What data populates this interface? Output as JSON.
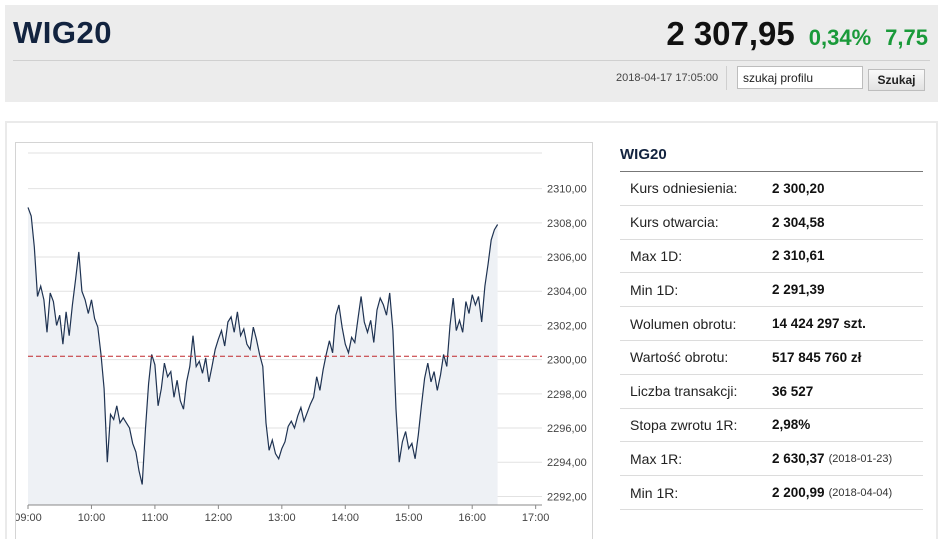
{
  "header": {
    "title": "WIG20",
    "price": "2 307,95",
    "change_pct": "0,34%",
    "change_abs": "7,75",
    "timestamp": "2018-04-17 17:05:00",
    "search": {
      "value": "szukaj profilu",
      "button_label": "Szukaj"
    },
    "colors": {
      "positive": "#1a9a3a",
      "title": "#12233f"
    }
  },
  "stats": {
    "title": "WIG20",
    "rows": [
      {
        "label": "Kurs odniesienia:",
        "value": "2 300,20",
        "date": ""
      },
      {
        "label": "Kurs otwarcia:",
        "value": "2 304,58",
        "date": ""
      },
      {
        "label": "Max 1D:",
        "value": "2 310,61",
        "date": ""
      },
      {
        "label": "Min 1D:",
        "value": "2 291,39",
        "date": ""
      },
      {
        "label": "Wolumen obrotu:",
        "value": "14 424 297 szt.",
        "date": ""
      },
      {
        "label": "Wartość obrotu:",
        "value": "517 845 760 zł",
        "date": ""
      },
      {
        "label": "Liczba transakcji:",
        "value": "36 527",
        "date": ""
      },
      {
        "label": "Stopa zwrotu 1R:",
        "value": "2,98%",
        "date": ""
      },
      {
        "label": "Max 1R:",
        "value": "2 630,37",
        "date": "(2018-01-23)"
      },
      {
        "label": "Min 1R:",
        "value": "2 200,99",
        "date": "(2018-04-04)"
      }
    ]
  },
  "chart_data": {
    "type": "area",
    "x_ticks": [
      "09:00",
      "10:00",
      "11:00",
      "12:00",
      "13:00",
      "14:00",
      "15:00",
      "16:00",
      "17:00"
    ],
    "y_ticks": [
      "2310,00",
      "2308,00",
      "2306,00",
      "2304,00",
      "2302,00",
      "2300,00",
      "2298,00",
      "2296,00",
      "2294,00",
      "2292,00"
    ],
    "xlim": [
      9.0,
      17.1
    ],
    "ylim": [
      2291.5,
      2312.2
    ],
    "reference_line": 2300.2,
    "colors": {
      "line": "#1f3352",
      "fill": "#eef1f5",
      "reference": "#c0282d",
      "grid": "#e2e2e2"
    },
    "series": [
      {
        "points": [
          [
            9.0,
            2308.9
          ],
          [
            9.05,
            2308.4
          ],
          [
            9.1,
            2306.6
          ],
          [
            9.15,
            2303.7
          ],
          [
            9.2,
            2304.3
          ],
          [
            9.25,
            2303.5
          ],
          [
            9.3,
            2301.6
          ],
          [
            9.35,
            2303.9
          ],
          [
            9.4,
            2303.4
          ],
          [
            9.45,
            2302.0
          ],
          [
            9.5,
            2302.6
          ],
          [
            9.55,
            2300.9
          ],
          [
            9.6,
            2302.8
          ],
          [
            9.65,
            2301.4
          ],
          [
            9.7,
            2303.2
          ],
          [
            9.75,
            2304.7
          ],
          [
            9.8,
            2306.3
          ],
          [
            9.85,
            2304.0
          ],
          [
            9.9,
            2303.5
          ],
          [
            9.95,
            2302.7
          ],
          [
            10.0,
            2303.5
          ],
          [
            10.05,
            2302.4
          ],
          [
            10.1,
            2301.9
          ],
          [
            10.15,
            2300.3
          ],
          [
            10.2,
            2298.3
          ],
          [
            10.25,
            2294.0
          ],
          [
            10.3,
            2296.8
          ],
          [
            10.35,
            2296.5
          ],
          [
            10.4,
            2297.3
          ],
          [
            10.45,
            2296.3
          ],
          [
            10.5,
            2296.6
          ],
          [
            10.55,
            2296.3
          ],
          [
            10.6,
            2296.0
          ],
          [
            10.65,
            2295.1
          ],
          [
            10.7,
            2294.6
          ],
          [
            10.75,
            2293.5
          ],
          [
            10.8,
            2292.7
          ],
          [
            10.85,
            2295.9
          ],
          [
            10.9,
            2298.6
          ],
          [
            10.95,
            2300.3
          ],
          [
            11.0,
            2299.7
          ],
          [
            11.05,
            2297.3
          ],
          [
            11.1,
            2298.3
          ],
          [
            11.15,
            2299.8
          ],
          [
            11.2,
            2299.0
          ],
          [
            11.25,
            2299.3
          ],
          [
            11.3,
            2297.8
          ],
          [
            11.35,
            2298.8
          ],
          [
            11.4,
            2297.6
          ],
          [
            11.45,
            2297.1
          ],
          [
            11.5,
            2298.7
          ],
          [
            11.55,
            2299.6
          ],
          [
            11.6,
            2301.4
          ],
          [
            11.65,
            2299.6
          ],
          [
            11.7,
            2299.9
          ],
          [
            11.75,
            2299.2
          ],
          [
            11.8,
            2300.1
          ],
          [
            11.85,
            2298.7
          ],
          [
            11.9,
            2299.6
          ],
          [
            11.95,
            2300.6
          ],
          [
            12.0,
            2301.2
          ],
          [
            12.05,
            2301.7
          ],
          [
            12.1,
            2300.8
          ],
          [
            12.15,
            2302.2
          ],
          [
            12.2,
            2302.5
          ],
          [
            12.25,
            2301.6
          ],
          [
            12.3,
            2302.8
          ],
          [
            12.35,
            2301.4
          ],
          [
            12.4,
            2301.8
          ],
          [
            12.45,
            2300.9
          ],
          [
            12.5,
            2300.6
          ],
          [
            12.55,
            2301.9
          ],
          [
            12.6,
            2301.2
          ],
          [
            12.65,
            2300.3
          ],
          [
            12.7,
            2299.6
          ],
          [
            12.75,
            2296.3
          ],
          [
            12.8,
            2294.7
          ],
          [
            12.85,
            2295.3
          ],
          [
            12.9,
            2294.5
          ],
          [
            12.95,
            2294.2
          ],
          [
            13.0,
            2294.8
          ],
          [
            13.05,
            2295.2
          ],
          [
            13.1,
            2296.1
          ],
          [
            13.15,
            2296.4
          ],
          [
            13.2,
            2296.0
          ],
          [
            13.25,
            2296.7
          ],
          [
            13.3,
            2297.2
          ],
          [
            13.35,
            2296.4
          ],
          [
            13.4,
            2296.9
          ],
          [
            13.45,
            2297.4
          ],
          [
            13.5,
            2297.8
          ],
          [
            13.55,
            2299.0
          ],
          [
            13.6,
            2298.2
          ],
          [
            13.65,
            2299.4
          ],
          [
            13.7,
            2300.3
          ],
          [
            13.75,
            2301.1
          ],
          [
            13.8,
            2300.4
          ],
          [
            13.85,
            2302.6
          ],
          [
            13.9,
            2303.2
          ],
          [
            13.95,
            2301.9
          ],
          [
            14.0,
            2300.9
          ],
          [
            14.05,
            2300.4
          ],
          [
            14.1,
            2301.3
          ],
          [
            14.15,
            2301.0
          ],
          [
            14.2,
            2302.4
          ],
          [
            14.25,
            2303.7
          ],
          [
            14.3,
            2302.2
          ],
          [
            14.35,
            2301.6
          ],
          [
            14.4,
            2302.3
          ],
          [
            14.45,
            2301.0
          ],
          [
            14.5,
            2302.9
          ],
          [
            14.55,
            2303.6
          ],
          [
            14.6,
            2303.2
          ],
          [
            14.65,
            2302.6
          ],
          [
            14.7,
            2303.9
          ],
          [
            14.75,
            2301.7
          ],
          [
            14.8,
            2297.1
          ],
          [
            14.85,
            2294.0
          ],
          [
            14.9,
            2295.2
          ],
          [
            14.95,
            2295.8
          ],
          [
            15.0,
            2294.8
          ],
          [
            15.05,
            2295.1
          ],
          [
            15.1,
            2294.2
          ],
          [
            15.15,
            2295.6
          ],
          [
            15.2,
            2297.3
          ],
          [
            15.25,
            2298.9
          ],
          [
            15.3,
            2299.8
          ],
          [
            15.35,
            2298.7
          ],
          [
            15.4,
            2299.3
          ],
          [
            15.45,
            2298.2
          ],
          [
            15.5,
            2299.1
          ],
          [
            15.55,
            2300.3
          ],
          [
            15.6,
            2299.6
          ],
          [
            15.65,
            2302.0
          ],
          [
            15.7,
            2303.6
          ],
          [
            15.75,
            2301.7
          ],
          [
            15.8,
            2302.3
          ],
          [
            15.85,
            2301.6
          ],
          [
            15.9,
            2303.4
          ],
          [
            15.95,
            2302.7
          ],
          [
            16.0,
            2303.8
          ],
          [
            16.05,
            2303.2
          ],
          [
            16.1,
            2303.7
          ],
          [
            16.15,
            2302.2
          ],
          [
            16.2,
            2304.3
          ],
          [
            16.25,
            2305.6
          ],
          [
            16.3,
            2307.0
          ],
          [
            16.35,
            2307.6
          ],
          [
            16.4,
            2307.9
          ]
        ]
      }
    ]
  }
}
